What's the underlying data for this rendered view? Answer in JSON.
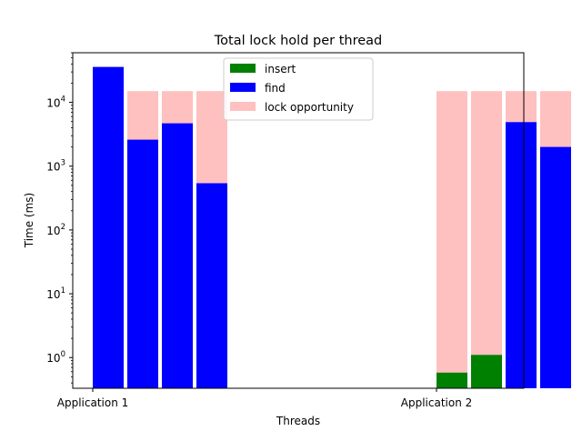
{
  "chart_data": {
    "type": "bar",
    "title": "Total lock hold per thread",
    "xlabel": "Threads",
    "ylabel": "Time (ms)",
    "yscale": "log",
    "ylim": [
      0.33,
      60000
    ],
    "grid": false,
    "legend_position": "top-center",
    "x_ticks": [
      {
        "label": "Application 1",
        "x": 0
      },
      {
        "label": "Application 2",
        "x": 1
      }
    ],
    "y_ticks": [
      {
        "base": "10",
        "exp": "0",
        "value": 1
      },
      {
        "base": "10",
        "exp": "1",
        "value": 10
      },
      {
        "base": "10",
        "exp": "2",
        "value": 100
      },
      {
        "base": "10",
        "exp": "3",
        "value": 1000
      },
      {
        "base": "10",
        "exp": "4",
        "value": 10000
      }
    ],
    "series": [
      {
        "name": "insert",
        "color": "#008000"
      },
      {
        "name": "find",
        "color": "#0000ff"
      },
      {
        "name": "lock opportunity",
        "color": "#ffc0c0"
      }
    ],
    "bars": [
      {
        "thread": 1,
        "application": "Application 1",
        "find": 36000,
        "insert": null,
        "lock_opportunity": null
      },
      {
        "thread": 2,
        "application": "Application 1",
        "find": 2600,
        "insert": null,
        "lock_opportunity": 15000
      },
      {
        "thread": 3,
        "application": "Application 1",
        "find": 4700,
        "insert": null,
        "lock_opportunity": 15000
      },
      {
        "thread": 4,
        "application": "Application 1",
        "find": 540,
        "insert": null,
        "lock_opportunity": 15000
      },
      {
        "thread": 1,
        "application": "Application 2",
        "find": null,
        "insert": 0.58,
        "lock_opportunity": 15000
      },
      {
        "thread": 2,
        "application": "Application 2",
        "find": null,
        "insert": 1.1,
        "lock_opportunity": 15000
      },
      {
        "thread": 3,
        "application": "Application 2",
        "find": 4900,
        "insert": null,
        "lock_opportunity": 15000
      },
      {
        "thread": 4,
        "application": "Application 2",
        "find": 2000,
        "insert": null,
        "lock_opportunity": 15000
      }
    ]
  }
}
